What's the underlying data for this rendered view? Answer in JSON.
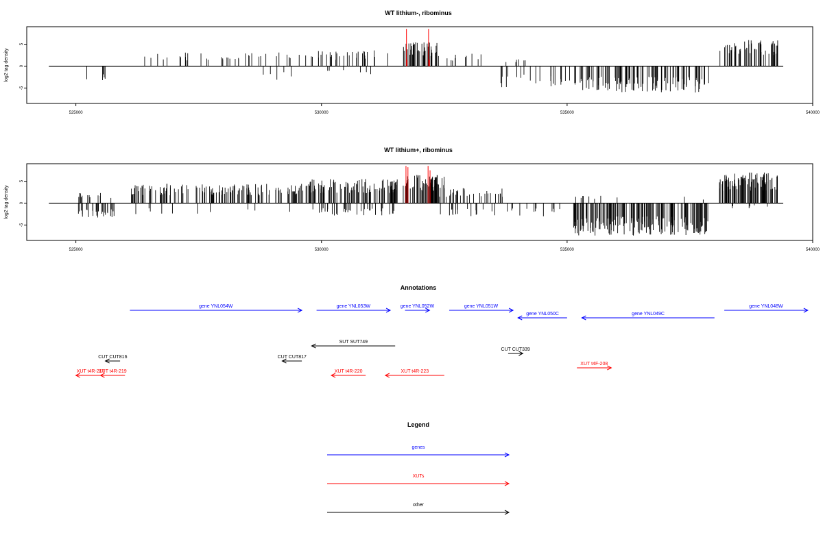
{
  "chart_data": [
    {
      "type": "bar",
      "title": "WT lithium-, ribominus",
      "ylabel": "log2 tag density",
      "xlim": [
        524000,
        540000
      ],
      "ylim": [
        -8.5,
        9
      ],
      "xticks": [
        "525000",
        "530000",
        "535000",
        "540000"
      ],
      "yticks": [
        "-5",
        "0",
        "5"
      ],
      "baseline_x": [
        524450,
        539400
      ],
      "bar_color": "#000000",
      "highlight_color": "#ff0000",
      "regions": [
        {
          "x": [
            525100,
            525800
          ],
          "lo": -3.2,
          "hi": 0,
          "n": 5
        },
        {
          "x": [
            526100,
            528800
          ],
          "lo": 0,
          "hi": 3.2,
          "n": 26
        },
        {
          "x": [
            528500,
            529600
          ],
          "lo": -3.4,
          "hi": 0,
          "n": 5
        },
        {
          "x": [
            528500,
            529800
          ],
          "lo": 0,
          "hi": 3.2,
          "n": 12
        },
        {
          "x": [
            529800,
            531400
          ],
          "lo": 0,
          "hi": 3.6,
          "n": 30
        },
        {
          "x": [
            530000,
            531300
          ],
          "lo": -2.2,
          "hi": 0,
          "n": 6
        },
        {
          "x": [
            531650,
            532400
          ],
          "lo": 0,
          "hi": 5.5,
          "n": 45
        },
        {
          "x": [
            532500,
            533400
          ],
          "lo": 0,
          "hi": 3.0,
          "n": 10
        },
        {
          "x": [
            533500,
            534300
          ],
          "lo": 0,
          "hi": 2.0,
          "n": 6
        },
        {
          "x": [
            533600,
            535200
          ],
          "lo": -4.8,
          "hi": 0,
          "n": 24
        },
        {
          "x": [
            535250,
            537900
          ],
          "lo": -6.0,
          "hi": 0,
          "n": 110
        },
        {
          "x": [
            538100,
            539300
          ],
          "lo": 0,
          "hi": 6.0,
          "n": 55
        }
      ],
      "highlights": [
        {
          "x": 531730,
          "y": 8.5
        },
        {
          "x": 531740,
          "y": 1.5
        },
        {
          "x": 532180,
          "y": 8.5
        },
        {
          "x": 532200,
          "y": 1.5
        }
      ]
    },
    {
      "type": "bar",
      "title": "WT lithium+, ribominus",
      "ylabel": "log2 tag density",
      "xlim": [
        524000,
        540000
      ],
      "ylim": [
        -8.5,
        9
      ],
      "xticks": [
        "525000",
        "530000",
        "535000",
        "540000"
      ],
      "yticks": [
        "-5",
        "0",
        "5"
      ],
      "baseline_x": [
        524450,
        539400
      ],
      "bar_color": "#000000",
      "highlight_color": "#ff0000",
      "regions": [
        {
          "x": [
            525050,
            525800
          ],
          "lo": -3.5,
          "hi": 0,
          "n": 28
        },
        {
          "x": [
            525050,
            525800
          ],
          "lo": 0,
          "hi": 2.4,
          "n": 12
        },
        {
          "x": [
            526100,
            529700
          ],
          "lo": 0,
          "hi": 4.5,
          "n": 140
        },
        {
          "x": [
            526100,
            529700
          ],
          "lo": -2.6,
          "hi": 0,
          "n": 10
        },
        {
          "x": [
            529700,
            531600
          ],
          "lo": 0,
          "hi": 5.6,
          "n": 110
        },
        {
          "x": [
            529800,
            531500
          ],
          "lo": -2.8,
          "hi": 0,
          "n": 35
        },
        {
          "x": [
            531650,
            532500
          ],
          "lo": 0,
          "hi": 6.8,
          "n": 65
        },
        {
          "x": [
            532400,
            533700
          ],
          "lo": 0,
          "hi": 3.6,
          "n": 30
        },
        {
          "x": [
            532300,
            535000
          ],
          "lo": -3.0,
          "hi": 0,
          "n": 30
        },
        {
          "x": [
            535100,
            537900
          ],
          "lo": -7.4,
          "hi": 0,
          "n": 170
        },
        {
          "x": [
            535100,
            537800
          ],
          "lo": 0,
          "hi": 1.8,
          "n": 10
        },
        {
          "x": [
            538100,
            539300
          ],
          "lo": 0,
          "hi": 7.0,
          "n": 95
        },
        {
          "x": [
            538300,
            539200
          ],
          "lo": -1.2,
          "hi": 0,
          "n": 6
        }
      ],
      "highlights": [
        {
          "x": 531720,
          "y": 8.5
        },
        {
          "x": 531760,
          "y": 8.2
        },
        {
          "x": 532170,
          "y": 8.5
        },
        {
          "x": 532210,
          "y": 7.5
        }
      ]
    }
  ],
  "annotations": {
    "title": "Annotations",
    "items": [
      {
        "label": "gene YNL054W",
        "kind": "gene",
        "x_start": 526100,
        "x_end": 529600,
        "dir": "right",
        "row": 1
      },
      {
        "label": "gene YNL053W",
        "kind": "gene",
        "x_start": 529900,
        "x_end": 531400,
        "dir": "right",
        "row": 1
      },
      {
        "label": "gene YNL052W",
        "kind": "gene",
        "x_start": 531700,
        "x_end": 532200,
        "dir": "right",
        "row": 1
      },
      {
        "label": "gene YNL051W",
        "kind": "gene",
        "x_start": 532600,
        "x_end": 533900,
        "dir": "right",
        "row": 1
      },
      {
        "label": "gene YNL050C",
        "kind": "gene",
        "x_start": 534000,
        "x_end": 535000,
        "dir": "left",
        "row": 2
      },
      {
        "label": "gene YNL049C",
        "kind": "gene",
        "x_start": 535300,
        "x_end": 538000,
        "dir": "left",
        "row": 2
      },
      {
        "label": "gene YNL048W",
        "kind": "gene",
        "x_start": 538200,
        "x_end": 539900,
        "dir": "right",
        "row": 1
      },
      {
        "label": "SUT SUT749",
        "kind": "other",
        "x_start": 529800,
        "x_end": 531500,
        "dir": "left",
        "row": 5
      },
      {
        "label": "CUT CUT816",
        "kind": "other",
        "x_start": 525600,
        "x_end": 525900,
        "dir": "left",
        "row": 7
      },
      {
        "label": "CUT CUT817",
        "kind": "other",
        "x_start": 529200,
        "x_end": 529600,
        "dir": "left",
        "row": 7
      },
      {
        "label": "CUT CUT339",
        "kind": "other",
        "x_start": 533800,
        "x_end": 534100,
        "dir": "right",
        "row": 6
      },
      {
        "label": "XUT t4R-219",
        "kind": "xut",
        "x_start": 525500,
        "x_end": 526000,
        "dir": "left",
        "row": 9
      },
      {
        "label": "XUT t4R-220",
        "kind": "xut",
        "x_start": 530200,
        "x_end": 530900,
        "dir": "left",
        "row": 9
      },
      {
        "label": "XUT t4R-223",
        "kind": "xut",
        "x_start": 531300,
        "x_end": 532500,
        "dir": "left",
        "row": 9
      },
      {
        "label": "XUT t4F-208",
        "kind": "xut",
        "x_start": 535200,
        "x_end": 535900,
        "dir": "right",
        "row": 8
      },
      {
        "label": "XUT t4R-217",
        "kind": "xut",
        "x_start": 525000,
        "x_end": 525600,
        "dir": "left",
        "row": 9
      }
    ]
  },
  "legend": {
    "title": "Legend",
    "items": [
      {
        "label": "genes",
        "kind": "gene"
      },
      {
        "label": "XUTs",
        "kind": "xut"
      },
      {
        "label": "other",
        "kind": "other"
      }
    ]
  },
  "colors": {
    "gene": "#0000ff",
    "xut": "#ff0000",
    "other": "#000000"
  }
}
